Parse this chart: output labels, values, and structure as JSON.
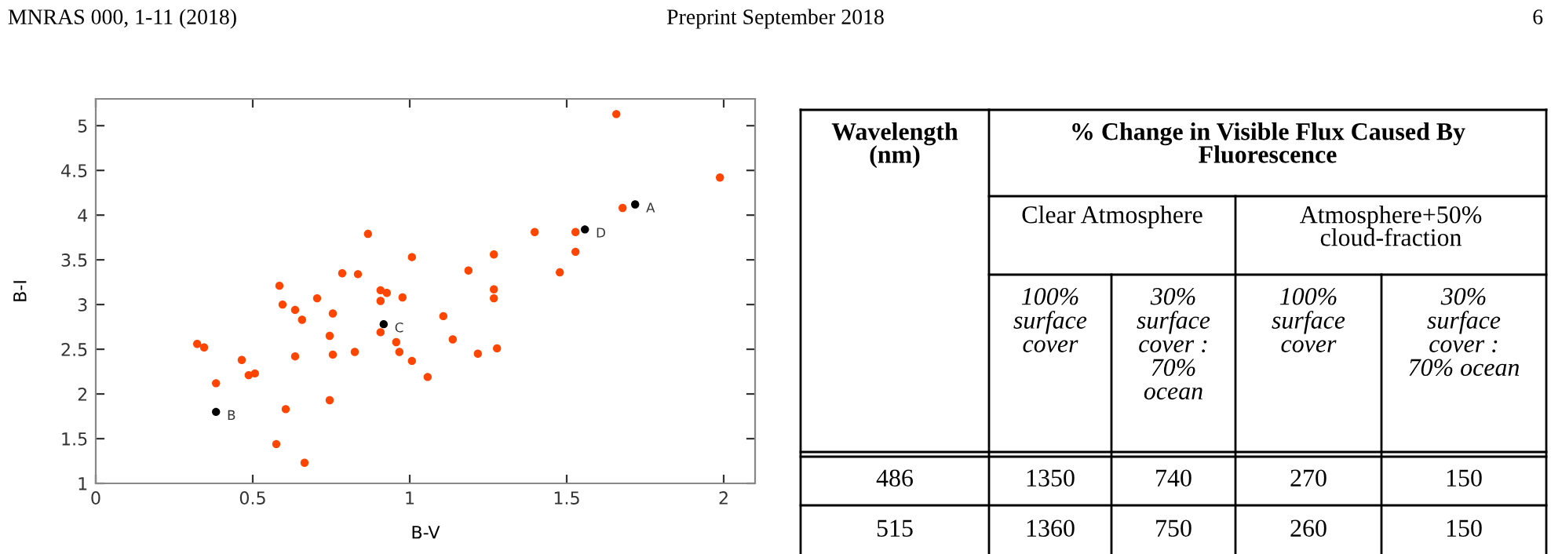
{
  "chart_data": [
    {
      "type": "scatter",
      "xlabel": "B-V",
      "ylabel": "B-I",
      "xlim": [
        0,
        2.1
      ],
      "ylim": [
        1,
        5.3
      ],
      "xticks": [
        0,
        0.5,
        1,
        1.5,
        2
      ],
      "yticks": [
        1,
        1.5,
        2,
        2.5,
        3,
        3.5,
        4,
        4.5,
        5
      ],
      "grid": false,
      "legend": false,
      "marker": "circle",
      "series": [
        {
          "color": "#ff4500",
          "x": [
            0.323,
            0.345,
            0.465,
            0.487,
            0.507,
            0.383,
            0.585,
            0.595,
            0.635,
            0.657,
            0.635,
            0.605,
            0.575,
            0.665,
            0.705,
            0.755,
            0.745,
            0.755,
            0.745,
            0.785,
            0.835,
            0.867,
            0.825,
            0.907,
            0.927,
            0.907,
            0.907,
            0.977,
            0.957,
            0.967,
            1.007,
            1.007,
            1.057,
            1.107,
            1.137,
            1.187,
            1.217,
            1.268,
            1.268,
            1.268,
            1.278,
            1.398,
            1.478,
            1.528,
            1.528,
            1.658,
            1.678,
            1.988
          ],
          "values": [
            2.56,
            2.52,
            2.38,
            2.21,
            2.23,
            2.12,
            3.21,
            3.0,
            2.94,
            2.83,
            2.42,
            1.83,
            1.44,
            1.23,
            3.07,
            2.9,
            2.65,
            2.44,
            1.93,
            3.35,
            3.34,
            3.79,
            2.47,
            3.16,
            3.13,
            3.04,
            2.69,
            3.08,
            2.58,
            2.47,
            3.53,
            2.37,
            2.19,
            2.87,
            2.61,
            3.38,
            2.45,
            3.56,
            3.17,
            3.07,
            2.51,
            3.81,
            3.36,
            3.81,
            3.59,
            5.13,
            4.08,
            4.42
          ]
        },
        {
          "color": "#000000",
          "x": [
            1.718,
            0.383,
            0.917,
            1.558
          ],
          "values": [
            4.12,
            1.8,
            2.78,
            3.84
          ]
        }
      ],
      "annotations": [
        "MNRAS 000, 1-11 (2018)",
        "Preprint September 2018",
        "6",
        {
          "text": "A",
          "x": 1.718,
          "y": 4.12
        },
        {
          "text": "B",
          "x": 0.383,
          "y": 1.8
        },
        {
          "text": "C",
          "x": 0.917,
          "y": 2.78
        },
        {
          "text": "D",
          "x": 1.558,
          "y": 3.84
        }
      ]
    },
    {
      "type": "other",
      "annotations": [
        "Wavelength\n(nm)",
        "% Change in Visible Flux Caused By\nFluorescence",
        "Clear Atmosphere",
        "Atmosphere+50%\ncloud-fraction"
      ],
      "categories": [
        "100%\nsurface\ncover",
        "30%\nsurface\ncover :\n70%\nocean",
        "100%\nsurface\ncover",
        "30%\nsurface\ncover :\n70% ocean"
      ],
      "y_categories": [
        "486",
        "515"
      ],
      "cell_labels": [
        [
          "1350",
          "740",
          "270",
          "150"
        ],
        [
          "1360",
          "750",
          "260",
          "150"
        ]
      ]
    }
  ]
}
